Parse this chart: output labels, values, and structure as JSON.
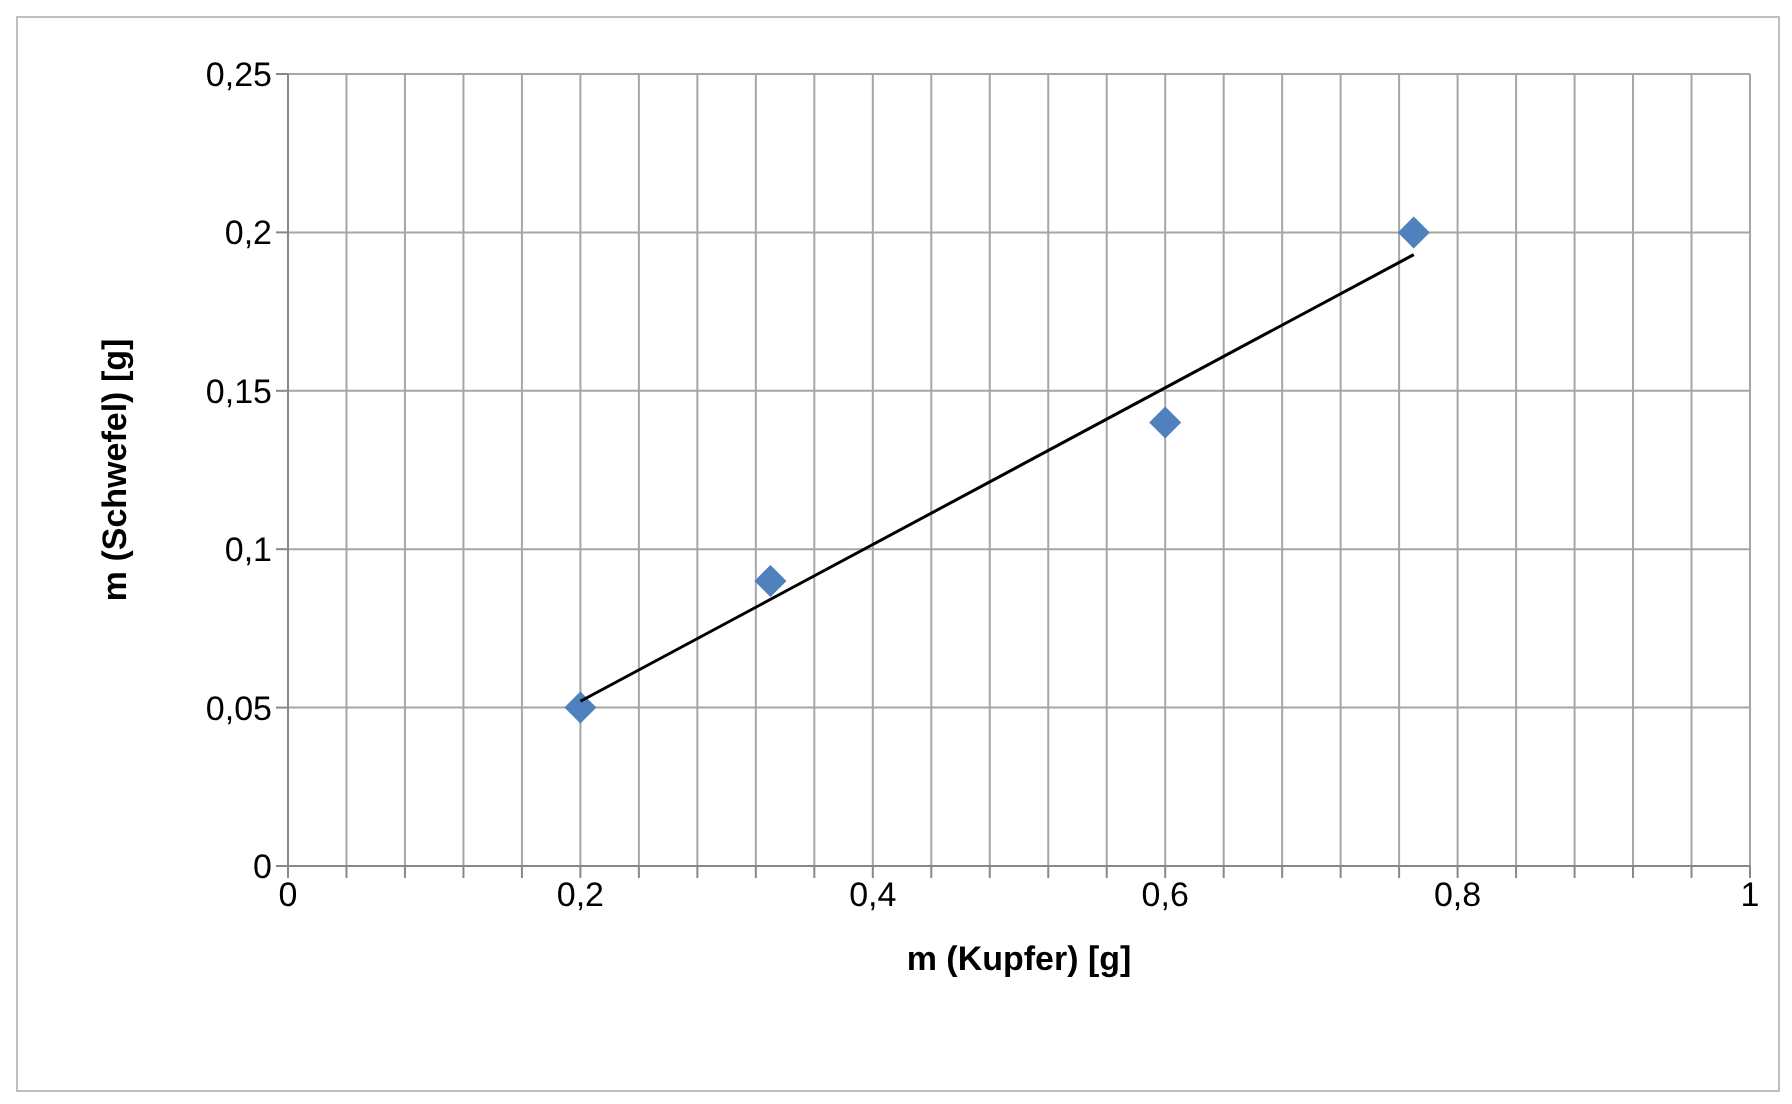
{
  "chart_data": {
    "type": "scatter",
    "xlabel": "m (Kupfer) [g]",
    "ylabel": "m (Schwefel) [g]",
    "xlim": [
      0,
      1
    ],
    "ylim": [
      0,
      0.25
    ],
    "xticks": [
      {
        "value": 0,
        "label": "0"
      },
      {
        "value": 0.04,
        "label": null
      },
      {
        "value": 0.08,
        "label": null
      },
      {
        "value": 0.12,
        "label": null
      },
      {
        "value": 0.16,
        "label": null
      },
      {
        "value": 0.2,
        "label": "0,2"
      },
      {
        "value": 0.24,
        "label": null
      },
      {
        "value": 0.28,
        "label": null
      },
      {
        "value": 0.32,
        "label": null
      },
      {
        "value": 0.36,
        "label": null
      },
      {
        "value": 0.4,
        "label": "0,4"
      },
      {
        "value": 0.44,
        "label": null
      },
      {
        "value": 0.48,
        "label": null
      },
      {
        "value": 0.52,
        "label": null
      },
      {
        "value": 0.56,
        "label": null
      },
      {
        "value": 0.6,
        "label": "0,6"
      },
      {
        "value": 0.64,
        "label": null
      },
      {
        "value": 0.68,
        "label": null
      },
      {
        "value": 0.72,
        "label": null
      },
      {
        "value": 0.76,
        "label": null
      },
      {
        "value": 0.8,
        "label": "0,8"
      },
      {
        "value": 0.84,
        "label": null
      },
      {
        "value": 0.88,
        "label": null
      },
      {
        "value": 0.92,
        "label": null
      },
      {
        "value": 0.96,
        "label": null
      },
      {
        "value": 1,
        "label": "1"
      }
    ],
    "yticks": [
      {
        "value": 0,
        "label": "0"
      },
      {
        "value": 0.05,
        "label": "0,05"
      },
      {
        "value": 0.1,
        "label": "0,1"
      },
      {
        "value": 0.15,
        "label": "0,15"
      },
      {
        "value": 0.2,
        "label": "0,2"
      },
      {
        "value": 0.25,
        "label": "0,25"
      }
    ],
    "grid": true,
    "legend": false,
    "series": [
      {
        "type": "scatter",
        "color": "#4f81bd",
        "marker": "diamond",
        "x": [
          0.2,
          0.33,
          0.6,
          0.77
        ],
        "values": [
          0.05,
          0.09,
          0.14,
          0.2
        ]
      },
      {
        "type": "line",
        "color": "#000000",
        "marker": "none",
        "line_style": "solid",
        "x": [
          0.2,
          0.77
        ],
        "values": [
          0.052,
          0.193
        ]
      }
    ]
  }
}
